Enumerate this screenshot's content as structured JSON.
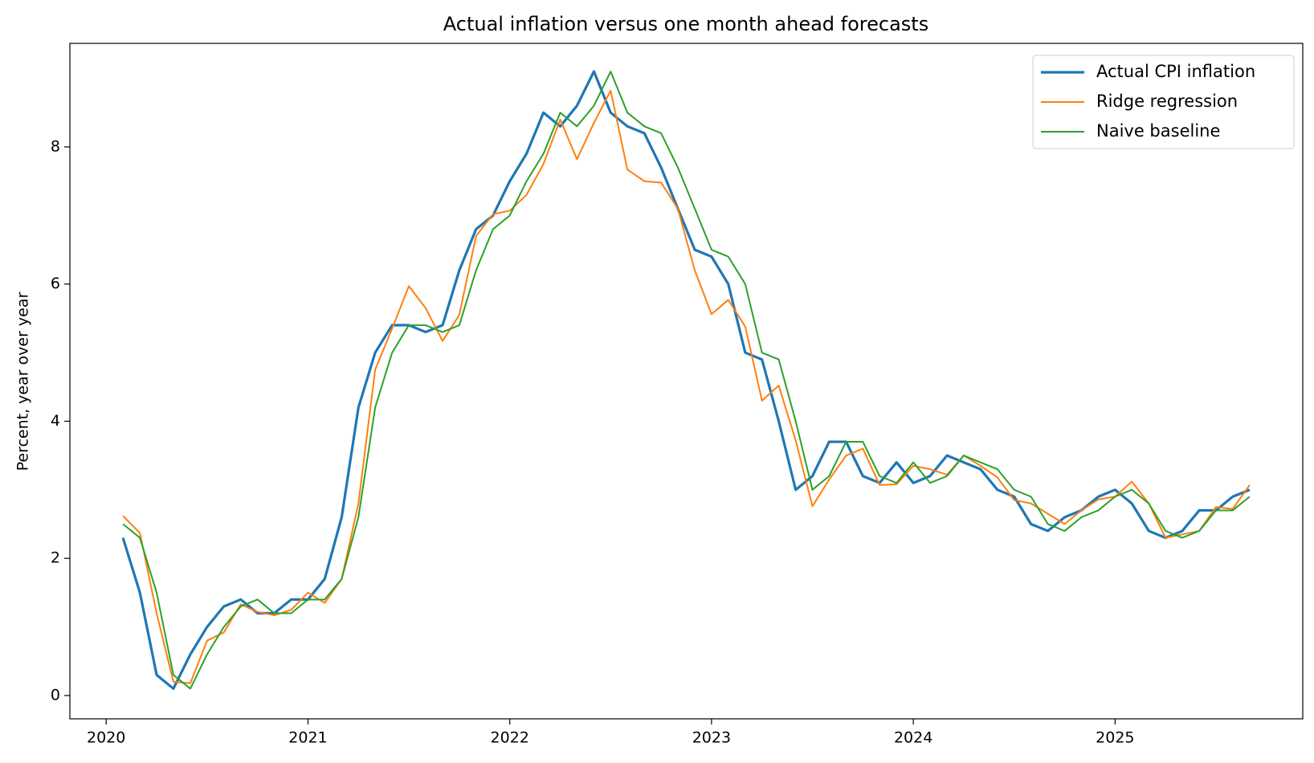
{
  "chart_data": {
    "type": "line",
    "title": "Actual inflation versus one month ahead forecasts",
    "y_label": "Percent, year over year",
    "x": [
      2020.083,
      2020.167,
      2020.25,
      2020.333,
      2020.417,
      2020.5,
      2020.583,
      2020.667,
      2020.75,
      2020.833,
      2020.917,
      2021.0,
      2021.083,
      2021.167,
      2021.25,
      2021.333,
      2021.417,
      2021.5,
      2021.583,
      2021.667,
      2021.75,
      2021.833,
      2021.917,
      2022.0,
      2022.083,
      2022.167,
      2022.25,
      2022.333,
      2022.417,
      2022.5,
      2022.583,
      2022.667,
      2022.75,
      2022.833,
      2022.917,
      2023.0,
      2023.083,
      2023.167,
      2023.25,
      2023.333,
      2023.417,
      2023.5,
      2023.583,
      2023.667,
      2023.75,
      2023.833,
      2023.917,
      2024.0,
      2024.083,
      2024.167,
      2024.25,
      2024.333,
      2024.417,
      2024.5,
      2024.583,
      2024.667,
      2024.75,
      2024.833,
      2024.917,
      2025.0,
      2025.083,
      2025.167,
      2025.25,
      2025.333,
      2025.417,
      2025.5,
      2025.583,
      2025.667
    ],
    "series": [
      {
        "name": "Actual CPI inflation",
        "color": "#1f77b4",
        "linewidth": 3.2,
        "values": [
          2.3,
          1.5,
          0.3,
          0.1,
          0.6,
          1.0,
          1.3,
          1.4,
          1.2,
          1.2,
          1.4,
          1.4,
          1.7,
          2.6,
          4.2,
          5.0,
          5.4,
          5.4,
          5.3,
          5.4,
          6.2,
          6.8,
          7.0,
          7.5,
          7.9,
          8.5,
          8.3,
          8.6,
          9.1,
          8.5,
          8.3,
          8.2,
          7.7,
          7.1,
          6.5,
          6.4,
          6.0,
          5.0,
          4.9,
          4.0,
          3.0,
          3.2,
          3.7,
          3.7,
          3.2,
          3.1,
          3.4,
          3.1,
          3.2,
          3.5,
          3.4,
          3.3,
          3.0,
          2.9,
          2.5,
          2.4,
          2.6,
          2.7,
          2.9,
          3.0,
          2.8,
          2.4,
          2.3,
          2.4,
          2.7,
          2.7,
          2.9,
          3.0
        ]
      },
      {
        "name": "Ridge regression",
        "color": "#ff7f0e",
        "linewidth": 2,
        "values": [
          2.62,
          2.37,
          1.2,
          0.2,
          0.18,
          0.8,
          0.92,
          1.33,
          1.22,
          1.17,
          1.25,
          1.5,
          1.35,
          1.7,
          2.8,
          4.75,
          5.35,
          5.97,
          5.65,
          5.17,
          5.55,
          6.7,
          7.02,
          7.07,
          7.3,
          7.75,
          8.4,
          7.82,
          8.35,
          8.82,
          7.67,
          7.5,
          7.48,
          7.1,
          6.2,
          5.56,
          5.77,
          5.38,
          4.3,
          4.52,
          3.72,
          2.76,
          3.15,
          3.5,
          3.6,
          3.07,
          3.08,
          3.35,
          3.3,
          3.22,
          3.5,
          3.35,
          3.18,
          2.85,
          2.8,
          2.65,
          2.5,
          2.7,
          2.86,
          2.9,
          3.12,
          2.8,
          2.3,
          2.35,
          2.4,
          2.75,
          2.72,
          3.07
        ]
      },
      {
        "name": "Naive baseline",
        "color": "#2ca02c",
        "linewidth": 2,
        "values": [
          2.5,
          2.3,
          1.5,
          0.3,
          0.1,
          0.6,
          1.0,
          1.3,
          1.4,
          1.2,
          1.2,
          1.4,
          1.4,
          1.7,
          2.6,
          4.2,
          5.0,
          5.4,
          5.4,
          5.3,
          5.4,
          6.2,
          6.8,
          7.0,
          7.5,
          7.9,
          8.5,
          8.3,
          8.6,
          9.1,
          8.5,
          8.3,
          8.2,
          7.7,
          7.1,
          6.5,
          6.4,
          6.0,
          5.0,
          4.9,
          4.0,
          3.0,
          3.2,
          3.7,
          3.7,
          3.2,
          3.1,
          3.4,
          3.1,
          3.2,
          3.5,
          3.4,
          3.3,
          3.0,
          2.9,
          2.5,
          2.4,
          2.6,
          2.7,
          2.9,
          3.0,
          2.8,
          2.4,
          2.3,
          2.4,
          2.7,
          2.7,
          2.9
        ]
      }
    ],
    "xlim": [
      2019.82,
      2025.93
    ],
    "xticks": [
      2020,
      2021,
      2022,
      2023,
      2024,
      2025
    ],
    "ylim": [
      -0.34,
      9.51
    ],
    "yticks": [
      0,
      2,
      4,
      6,
      8
    ],
    "grid": false,
    "legend": "upper right"
  }
}
